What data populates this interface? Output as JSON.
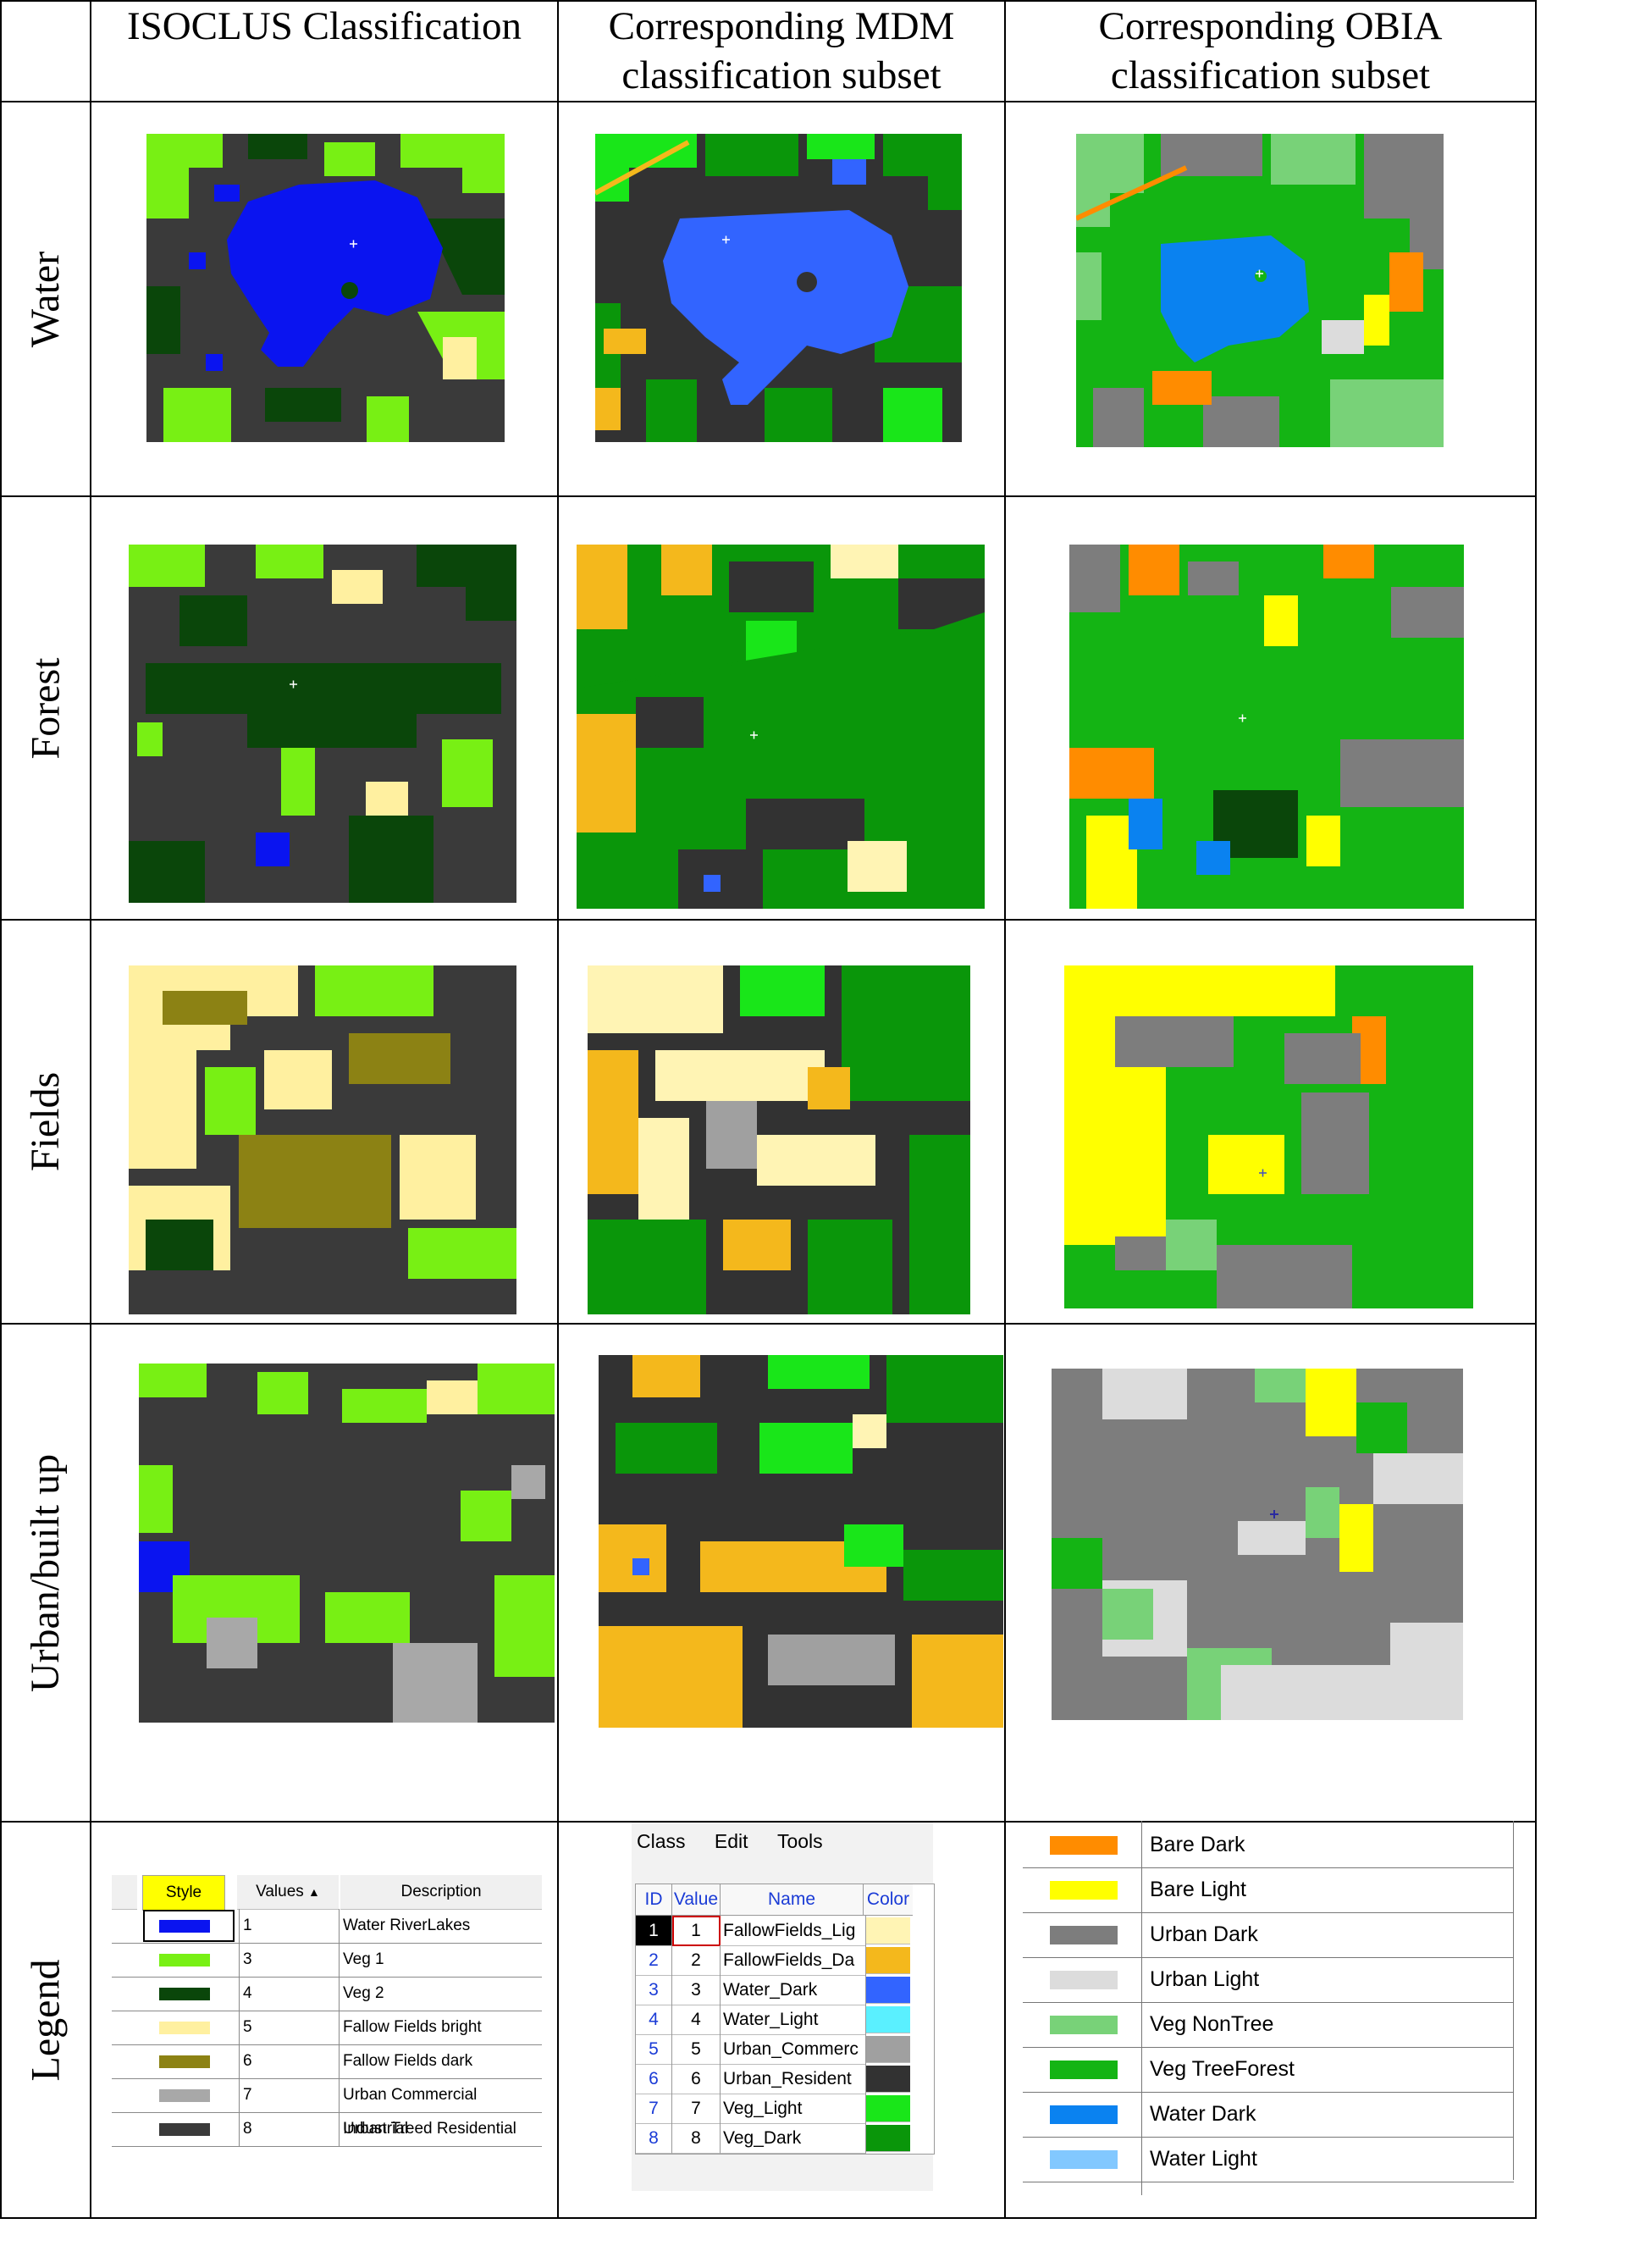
{
  "headers": {
    "col1": "ISOCLUS Classification",
    "col2_line1": "Corresponding MDM",
    "col2_line2": "classification subset",
    "col3_line1": "Corresponding OBIA",
    "col3_line2": "classification subset"
  },
  "rows": [
    "Water",
    "Forest",
    "Fields",
    "Urban/built up",
    "Legend"
  ],
  "isoclus_legend": {
    "headers": [
      "Style",
      "Values",
      "Description"
    ],
    "items": [
      {
        "value": "1",
        "description": "Water RiverLakes",
        "color": "#0a14f0"
      },
      {
        "value": "3",
        "description": "Veg 1",
        "color": "#78f014"
      },
      {
        "value": "4",
        "description": "Veg 2",
        "color": "#0a460a"
      },
      {
        "value": "5",
        "description": "Fallow Fields bright",
        "color": "#fff0a0"
      },
      {
        "value": "6",
        "description": "Fallow Fields dark",
        "color": "#8c8214"
      },
      {
        "value": "7",
        "description": "Urban Commercial Industrial",
        "color": "#a8a8a8"
      },
      {
        "value": "8",
        "description": "Urban Treed Residential",
        "color": "#3a3a3a"
      }
    ]
  },
  "mdm_legend": {
    "menu": [
      "Class",
      "Edit",
      "Tools"
    ],
    "headers": [
      "ID",
      "Value",
      "Name",
      "Color"
    ],
    "items": [
      {
        "id": "1",
        "value": "1",
        "name": "FallowFields_Lig",
        "color": "#fff4b4"
      },
      {
        "id": "2",
        "value": "2",
        "name": "FallowFields_Da",
        "color": "#f4b81c"
      },
      {
        "id": "3",
        "value": "3",
        "name": "Water_Dark",
        "color": "#3264ff"
      },
      {
        "id": "4",
        "value": "4",
        "name": "Water_Light",
        "color": "#5af0ff"
      },
      {
        "id": "5",
        "value": "5",
        "name": "Urban_Commerc",
        "color": "#a0a0a0"
      },
      {
        "id": "6",
        "value": "6",
        "name": "Urban_Resident",
        "color": "#323232"
      },
      {
        "id": "7",
        "value": "7",
        "name": "Veg_Light",
        "color": "#19e619"
      },
      {
        "id": "8",
        "value": "8",
        "name": "Veg_Dark",
        "color": "#0a960a"
      }
    ]
  },
  "obia_legend": {
    "items": [
      {
        "name": "Bare Dark",
        "color": "#ff8c00"
      },
      {
        "name": "Bare Light",
        "color": "#ffff00"
      },
      {
        "name": "Urban Dark",
        "color": "#7d7d7d"
      },
      {
        "name": "Urban Light",
        "color": "#dcdcdc"
      },
      {
        "name": "Veg NonTree",
        "color": "#78d278"
      },
      {
        "name": "Veg TreeForest",
        "color": "#14b414"
      },
      {
        "name": "Water Dark",
        "color": "#0a82f0"
      },
      {
        "name": "Water Light",
        "color": "#82c8ff"
      }
    ]
  }
}
